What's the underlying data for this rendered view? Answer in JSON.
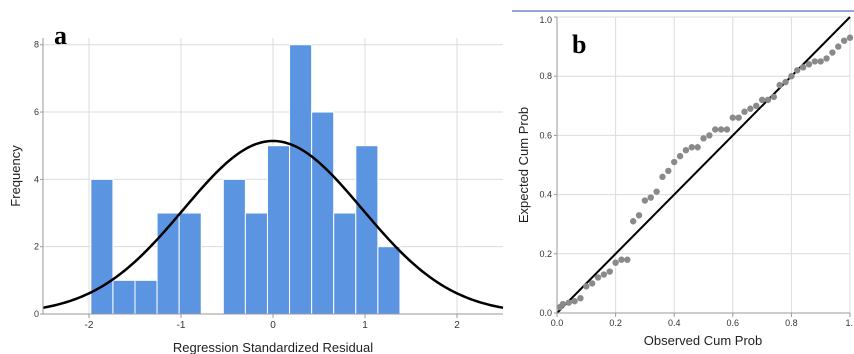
{
  "chart_data": [
    {
      "type": "bar",
      "panel_label": "a",
      "xlabel": "Regression Standardized Residual",
      "ylabel": "Frequency",
      "xlim": [
        -2.5,
        2.5
      ],
      "ylim": [
        0,
        8.2
      ],
      "x_ticks": [
        -2,
        -1,
        0,
        1,
        2
      ],
      "x_tick_labels": [
        "-2",
        "-1",
        "0",
        "1",
        "2"
      ],
      "y_ticks": [
        0,
        2,
        4,
        6,
        8
      ],
      "y_tick_labels": [
        "0",
        "2",
        "4",
        "6",
        "8"
      ],
      "grid": true,
      "bar_color": "#5b95e2",
      "bin_width": 0.24,
      "bins": [
        {
          "start": -1.98,
          "count": 4
        },
        {
          "start": -1.74,
          "count": 1
        },
        {
          "start": -1.5,
          "count": 1
        },
        {
          "start": -1.26,
          "count": 3
        },
        {
          "start": -1.02,
          "count": 3
        },
        {
          "start": -0.54,
          "count": 4
        },
        {
          "start": -0.3,
          "count": 3
        },
        {
          "start": -0.06,
          "count": 5
        },
        {
          "start": 0.18,
          "count": 8
        },
        {
          "start": 0.42,
          "count": 6
        },
        {
          "start": 0.66,
          "count": 3
        },
        {
          "start": 0.9,
          "count": 5
        },
        {
          "start": 1.14,
          "count": 2
        }
      ],
      "normal_curve": {
        "mean": 0,
        "sd": 0.97,
        "scale": 12.5,
        "color": "#000000"
      }
    },
    {
      "type": "scatter",
      "panel_label": "b",
      "xlabel": "Observed Cum Prob",
      "ylabel": "Expected Cum Prob",
      "xlim": [
        0,
        1
      ],
      "ylim": [
        0,
        1
      ],
      "x_ticks": [
        0,
        0.2,
        0.4,
        0.6,
        0.8,
        1
      ],
      "x_tick_labels": [
        "0.0",
        "0.2",
        "0.4",
        "0.6",
        "0.8",
        "1."
      ],
      "y_ticks": [
        0,
        0.2,
        0.4,
        0.6,
        0.8,
        1
      ],
      "y_tick_labels": [
        "0.0",
        "0.2",
        "0.4",
        "0.6",
        "0.8",
        "1.0"
      ],
      "grid": true,
      "point_color": "#8a8a8a",
      "reference_line": {
        "from": [
          0,
          0
        ],
        "to": [
          1,
          1
        ],
        "color": "#000000"
      },
      "points": [
        [
          0.01,
          0.02
        ],
        [
          0.02,
          0.03
        ],
        [
          0.04,
          0.035
        ],
        [
          0.06,
          0.04
        ],
        [
          0.08,
          0.05
        ],
        [
          0.1,
          0.09
        ],
        [
          0.12,
          0.1
        ],
        [
          0.14,
          0.12
        ],
        [
          0.16,
          0.13
        ],
        [
          0.18,
          0.14
        ],
        [
          0.2,
          0.17
        ],
        [
          0.22,
          0.18
        ],
        [
          0.24,
          0.18
        ],
        [
          0.26,
          0.31
        ],
        [
          0.28,
          0.33
        ],
        [
          0.3,
          0.38
        ],
        [
          0.32,
          0.39
        ],
        [
          0.34,
          0.41
        ],
        [
          0.36,
          0.46
        ],
        [
          0.38,
          0.48
        ],
        [
          0.4,
          0.51
        ],
        [
          0.42,
          0.53
        ],
        [
          0.44,
          0.55
        ],
        [
          0.46,
          0.56
        ],
        [
          0.48,
          0.56
        ],
        [
          0.5,
          0.59
        ],
        [
          0.52,
          0.6
        ],
        [
          0.54,
          0.62
        ],
        [
          0.56,
          0.62
        ],
        [
          0.58,
          0.62
        ],
        [
          0.6,
          0.66
        ],
        [
          0.62,
          0.66
        ],
        [
          0.64,
          0.68
        ],
        [
          0.66,
          0.69
        ],
        [
          0.68,
          0.7
        ],
        [
          0.7,
          0.72
        ],
        [
          0.72,
          0.72
        ],
        [
          0.74,
          0.73
        ],
        [
          0.76,
          0.77
        ],
        [
          0.78,
          0.78
        ],
        [
          0.8,
          0.8
        ],
        [
          0.82,
          0.82
        ],
        [
          0.84,
          0.83
        ],
        [
          0.86,
          0.84
        ],
        [
          0.88,
          0.85
        ],
        [
          0.9,
          0.85
        ],
        [
          0.92,
          0.86
        ],
        [
          0.94,
          0.88
        ],
        [
          0.96,
          0.9
        ],
        [
          0.98,
          0.92
        ],
        [
          1.0,
          0.93
        ]
      ]
    }
  ]
}
